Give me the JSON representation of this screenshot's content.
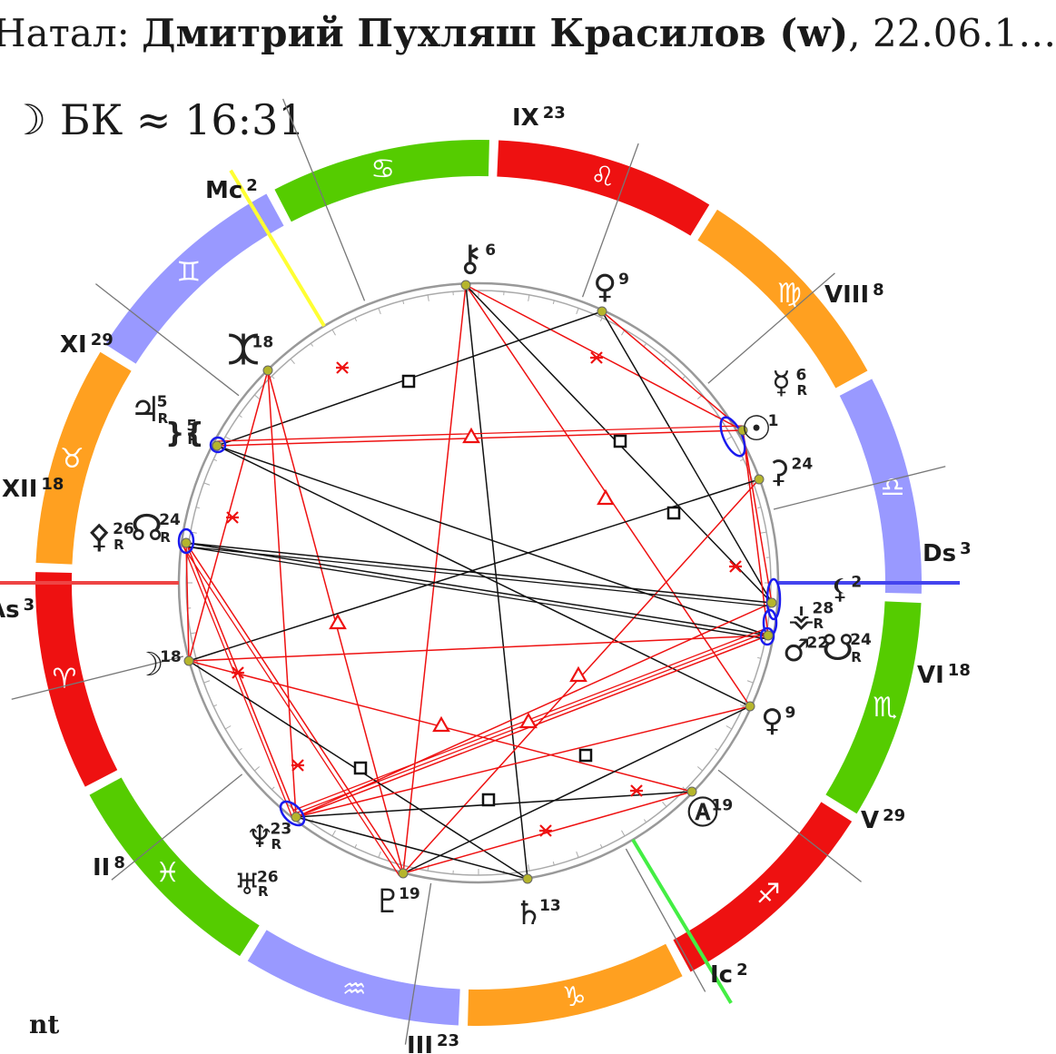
{
  "header": {
    "prefix": "Натал: ",
    "name": "Дмитрий Пухляш Красилов (w)",
    "suffix": ", 22.06.1…"
  },
  "time": {
    "moon_symbol": "☽",
    "text": "БК ≈ 16:31"
  },
  "footer": "nt",
  "colors": {
    "fire": "#ee1111",
    "earth": "#ffa020",
    "air": "#9999ff",
    "water": "#55cc00",
    "aspect_red": "#ee1111",
    "aspect_black": "#111111",
    "conjunction": "#1a1aee",
    "mc_line": "#ffff33",
    "ic_line": "#44ee44",
    "asc_line": "#ee4444",
    "dsc_line": "#4444ee",
    "planet_dot": "#b5b52c"
  },
  "zodiac": [
    {
      "sign": "leo",
      "glyph": "♌",
      "element": "fire"
    },
    {
      "sign": "virgo",
      "glyph": "♍",
      "element": "earth"
    },
    {
      "sign": "libra",
      "glyph": "♎",
      "element": "air"
    },
    {
      "sign": "scorpio",
      "glyph": "♏",
      "element": "water"
    },
    {
      "sign": "sagittarius",
      "glyph": "♐",
      "element": "fire"
    },
    {
      "sign": "capricorn",
      "glyph": "♑",
      "element": "earth"
    },
    {
      "sign": "aquarius",
      "glyph": "♒",
      "element": "air"
    },
    {
      "sign": "pisces",
      "glyph": "♓",
      "element": "water"
    },
    {
      "sign": "aries",
      "glyph": "♈",
      "element": "fire"
    },
    {
      "sign": "taurus",
      "glyph": "♉",
      "element": "earth"
    },
    {
      "sign": "gemini",
      "glyph": "♊",
      "element": "air"
    },
    {
      "sign": "cancer",
      "glyph": "♋",
      "element": "water"
    }
  ],
  "houses": [
    {
      "label": "As",
      "deg": "3"
    },
    {
      "label": "II",
      "deg": "8"
    },
    {
      "label": "III",
      "deg": "23"
    },
    {
      "label": "Ic",
      "deg": "2"
    },
    {
      "label": "V",
      "deg": "29"
    },
    {
      "label": "VI",
      "deg": "18"
    },
    {
      "label": "Ds",
      "deg": "3"
    },
    {
      "label": "VIII",
      "deg": "8"
    },
    {
      "label": "IX",
      "deg": "23"
    },
    {
      "label": "Mc",
      "deg": "2"
    },
    {
      "label": "XI",
      "deg": "29"
    },
    {
      "label": "XII",
      "deg": "18"
    }
  ],
  "planets": [
    {
      "name": "chiron",
      "glyph": "⚷",
      "deg": "6",
      "retro": ""
    },
    {
      "name": "venus",
      "glyph": "♀",
      "deg": "9",
      "retro": ""
    },
    {
      "name": "eris",
      "glyph": "⯰",
      "deg": "18",
      "retro": ""
    },
    {
      "name": "mercury",
      "glyph": "☿",
      "deg": "6",
      "retro": "R"
    },
    {
      "name": "sun",
      "glyph": "☉",
      "deg": "1",
      "retro": ""
    },
    {
      "name": "jupiter",
      "glyph": "♃",
      "deg": "5",
      "retro": "R"
    },
    {
      "name": "makemake",
      "glyph": "}{",
      "deg": "5",
      "retro": "R"
    },
    {
      "name": "ceres",
      "glyph": "⚳",
      "deg": "24",
      "retro": ""
    },
    {
      "name": "proserpina",
      "glyph": "⚴",
      "deg": "26",
      "retro": "R"
    },
    {
      "name": "north-node",
      "glyph": "☊",
      "deg": "24",
      "retro": "R"
    },
    {
      "name": "lilith",
      "glyph": "⚸",
      "deg": "2",
      "retro": ""
    },
    {
      "name": "vesta",
      "glyph": "⚶",
      "deg": "28",
      "retro": "R"
    },
    {
      "name": "mars",
      "glyph": "♂",
      "deg": "22",
      "retro": ""
    },
    {
      "name": "south-node",
      "glyph": "☋",
      "deg": "24",
      "retro": "R"
    },
    {
      "name": "moon",
      "glyph": "☽",
      "deg": "18",
      "retro": ""
    },
    {
      "name": "venus-2",
      "glyph": "♀",
      "deg": "9",
      "retro": ""
    },
    {
      "name": "vertex",
      "glyph": "Ⓐ",
      "deg": "19",
      "retro": ""
    },
    {
      "name": "neptune",
      "glyph": "♆",
      "deg": "23",
      "retro": "R"
    },
    {
      "name": "uranus",
      "glyph": "♅",
      "deg": "26",
      "retro": "R"
    },
    {
      "name": "pluto",
      "glyph": "♇",
      "deg": "19",
      "retro": ""
    },
    {
      "name": "saturn",
      "glyph": "♄",
      "deg": "13",
      "retro": ""
    }
  ],
  "aspect_glyphs": {
    "square": "□",
    "trine": "△",
    "sextile": "✶",
    "opposition": "☍"
  }
}
